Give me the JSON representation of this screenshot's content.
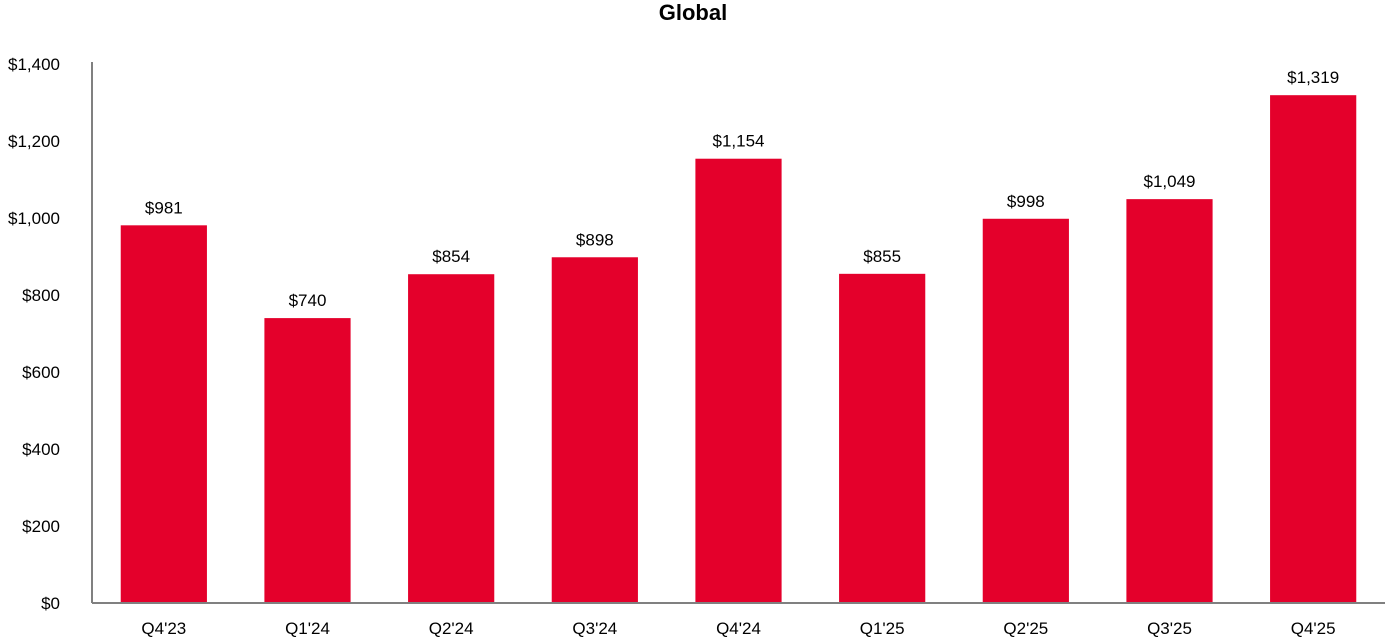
{
  "chart_data": {
    "type": "bar",
    "title": "Global",
    "categories": [
      "Q4'23",
      "Q1'24",
      "Q2'24",
      "Q3'24",
      "Q4'24",
      "Q1'25",
      "Q2'25",
      "Q3'25",
      "Q4'25"
    ],
    "values": [
      981,
      740,
      854,
      898,
      1154,
      855,
      998,
      1049,
      1319
    ],
    "data_labels": [
      "$981",
      "$740",
      "$854",
      "$898",
      "$1,154",
      "$855",
      "$998",
      "$1,049",
      "$1,319"
    ],
    "y_ticks": [
      0,
      200,
      400,
      600,
      800,
      1000,
      1200,
      1400
    ],
    "y_tick_labels": [
      "$0",
      "$200",
      "$400",
      "$600",
      "$800",
      "$1,000",
      "$1,200",
      "$1,400"
    ],
    "ylim": [
      0,
      1400
    ],
    "xlabel": "",
    "ylabel": "",
    "grid": false,
    "legend": "none",
    "bar_color": "#E4002B",
    "axis_color": "#808080"
  }
}
